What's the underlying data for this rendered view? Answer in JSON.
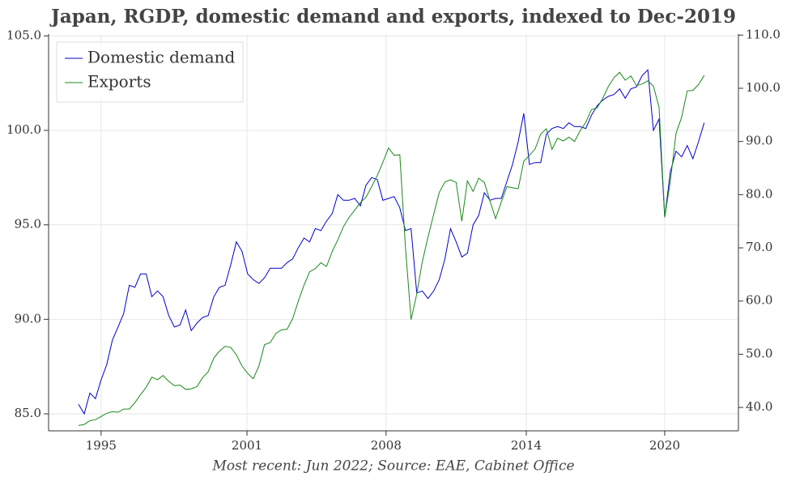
{
  "chart_data": {
    "type": "line",
    "title": "Japan, RGDP, domestic demand and exports, indexed to Dec-2019",
    "caption": "Most recent: Jun 2022; Source: EAE, Cabinet Office",
    "legend": "upper left",
    "grid": true,
    "x": [
      1994,
      1994.25,
      1994.5,
      1994.75,
      1995,
      1995.25,
      1995.5,
      1995.75,
      1996,
      1996.25,
      1996.5,
      1996.75,
      1997,
      1997.25,
      1997.5,
      1997.75,
      1998,
      1998.25,
      1998.5,
      1998.75,
      1999,
      1999.25,
      1999.5,
      1999.75,
      2000,
      2000.25,
      2000.5,
      2000.75,
      2001,
      2001.25,
      2001.5,
      2001.75,
      2002,
      2002.25,
      2002.5,
      2002.75,
      2003,
      2003.25,
      2003.5,
      2003.75,
      2004,
      2004.25,
      2004.5,
      2004.75,
      2005,
      2005.25,
      2005.5,
      2005.75,
      2006,
      2006.25,
      2006.5,
      2006.75,
      2007,
      2007.25,
      2007.5,
      2007.75,
      2008,
      2008.25,
      2008.5,
      2008.75,
      2009,
      2009.25,
      2009.5,
      2009.75,
      2010,
      2010.25,
      2010.5,
      2010.75,
      2011,
      2011.25,
      2011.5,
      2011.75,
      2012,
      2012.25,
      2012.5,
      2012.75,
      2013,
      2013.25,
      2013.5,
      2013.75,
      2014,
      2014.25,
      2014.5,
      2014.75,
      2015,
      2015.25,
      2015.5,
      2015.75,
      2016,
      2016.25,
      2016.5,
      2016.75,
      2017,
      2017.25,
      2017.5,
      2017.75,
      2018,
      2018.25,
      2018.5,
      2018.75,
      2019,
      2019.25,
      2019.5,
      2019.75,
      2020,
      2020.25,
      2020.5,
      2020.75,
      2021,
      2021.25,
      2021.5,
      2021.75
    ],
    "series": [
      {
        "name": "Domestic demand",
        "color": "#0000cc",
        "axis": "y",
        "values": [
          85.5,
          85.0,
          86.1,
          85.8,
          86.8,
          87.6,
          88.9,
          89.6,
          90.3,
          91.8,
          91.7,
          92.4,
          92.4,
          91.2,
          91.5,
          91.2,
          90.2,
          89.6,
          89.7,
          90.5,
          89.4,
          89.8,
          90.1,
          90.2,
          91.2,
          91.7,
          91.8,
          92.9,
          94.1,
          93.6,
          92.4,
          92.1,
          91.9,
          92.2,
          92.7,
          92.7,
          92.7,
          93.0,
          93.2,
          93.8,
          94.3,
          94.1,
          94.8,
          94.7,
          95.2,
          95.6,
          96.6,
          96.3,
          96.3,
          96.4,
          96.0,
          97.1,
          97.5,
          97.4,
          96.3,
          96.4,
          96.5,
          95.9,
          94.7,
          94.8,
          91.4,
          91.5,
          91.1,
          91.5,
          92.1,
          93.2,
          94.8,
          94.1,
          93.3,
          93.5,
          95.0,
          95.5,
          96.7,
          96.3,
          96.4,
          96.4,
          97.3,
          98.2,
          99.4,
          100.9,
          98.2,
          98.3,
          98.3,
          99.8,
          100.1,
          100.2,
          100.1,
          100.4,
          100.2,
          100.2,
          100.1,
          100.8,
          101.3,
          101.6,
          101.8,
          101.9,
          102.2,
          101.7,
          102.2,
          102.3,
          102.9,
          103.2,
          100.0,
          100.6,
          95.4,
          97.8,
          98.9,
          98.6,
          99.2,
          98.5,
          99.4,
          100.4
        ]
      },
      {
        "name": "Exports",
        "color": "#1a8a1a",
        "axis": "y2",
        "values": [
          36.6,
          36.8,
          37.5,
          37.7,
          38.3,
          38.9,
          39.2,
          39.1,
          39.7,
          39.7,
          40.9,
          42.4,
          43.8,
          45.7,
          45.2,
          46.0,
          44.9,
          44.1,
          44.2,
          43.4,
          43.5,
          43.9,
          45.6,
          46.7,
          49.3,
          50.6,
          51.5,
          51.3,
          49.9,
          47.8,
          46.4,
          45.4,
          47.8,
          51.8,
          52.2,
          53.9,
          54.6,
          54.7,
          56.7,
          60.0,
          63.0,
          65.5,
          66.1,
          67.2,
          66.5,
          69.3,
          71.5,
          74.0,
          75.7,
          77.1,
          78.5,
          79.5,
          81.5,
          83.6,
          86.1,
          88.8,
          87.4,
          87.5,
          70.0,
          56.5,
          61.3,
          67.4,
          72.0,
          76.3,
          80.4,
          82.4,
          82.8,
          82.3,
          75.0,
          82.6,
          80.6,
          83.1,
          82.3,
          78.8,
          75.5,
          78.6,
          81.5,
          81.3,
          81.1,
          86.3,
          87.4,
          88.6,
          91.4,
          92.4,
          88.5,
          90.6,
          90.1,
          90.8,
          90.0,
          92.0,
          93.6,
          96.0,
          96.3,
          98.1,
          100.3,
          102.0,
          103.0,
          101.5,
          102.3,
          100.5,
          100.8,
          101.4,
          100.4,
          96.4,
          75.8,
          82.5,
          91.5,
          94.5,
          99.5,
          99.6,
          100.7,
          102.4
        ]
      }
    ],
    "xlim": [
      1992.67,
      2023.27
    ],
    "xticks": [
      1995,
      {
        "value": 2001.47,
        "label": "2001"
      },
      {
        "value": 2007.64,
        "label": "2008"
      },
      {
        "value": 2013.86,
        "label": "2014"
      },
      2020
    ],
    "ylim": [
      84.1,
      105.1
    ],
    "yticks": [
      {
        "value": 85,
        "label": "85.0"
      },
      {
        "value": 90,
        "label": "90.0"
      },
      {
        "value": 95,
        "label": "95.0"
      },
      {
        "value": 100,
        "label": "100.0"
      },
      {
        "value": 105,
        "label": "105.0"
      }
    ],
    "y2lim": [
      35.6,
      110.2
    ],
    "y2ticks": [
      {
        "value": 40,
        "label": "40.0"
      },
      {
        "value": 50,
        "label": "50.0"
      },
      {
        "value": 60,
        "label": "60.0"
      },
      {
        "value": 70,
        "label": "70.0"
      },
      {
        "value": 80,
        "label": "80.0"
      },
      {
        "value": 90,
        "label": "90.0"
      },
      {
        "value": 100,
        "label": "100.0"
      },
      {
        "value": 110,
        "label": "110.0"
      }
    ]
  }
}
